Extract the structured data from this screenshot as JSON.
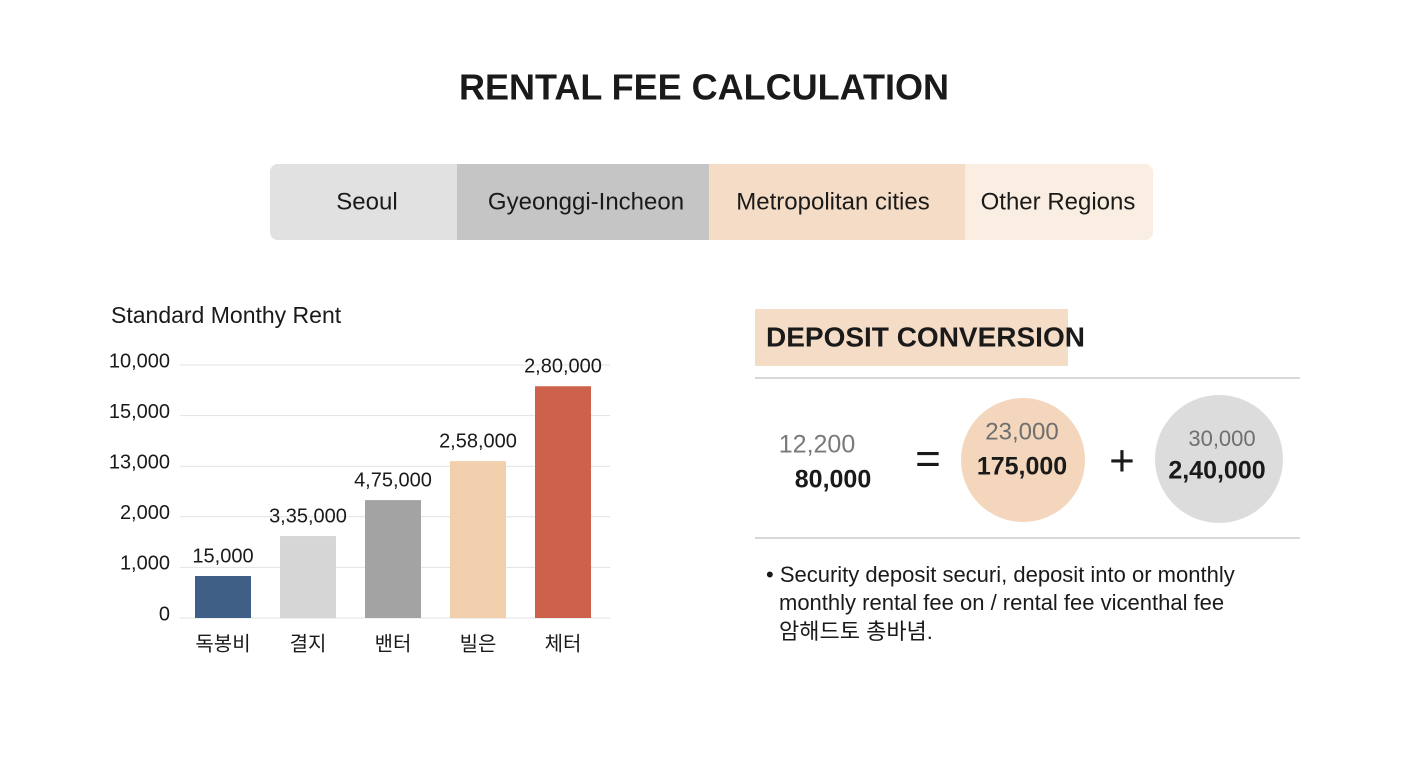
{
  "header": {
    "title": "RENTAL FEE CALCULATION"
  },
  "tabs": [
    "Seoul",
    "Gyeonggi-Incheon",
    "Metropolitan cities",
    "Other Regions"
  ],
  "chart_data": {
    "type": "bar",
    "title": "Standard Monthy Rent",
    "categories": [
      "독봉비",
      "결지",
      "밴터",
      "빌은",
      "체터"
    ],
    "values": [
      0.83,
      1.62,
      2.33,
      3.1,
      4.58
    ],
    "value_labels": [
      "15,000",
      "3,35,000",
      "4,75,000",
      "2,58,000",
      "2,80,000"
    ],
    "colors": [
      "#3f5f86",
      "#d6d6d6",
      "#a3a3a3",
      "#f1cfad",
      "#cd614b"
    ],
    "ylim": [
      0,
      5.2
    ],
    "yticks": [
      {
        "value": 0,
        "label": "0"
      },
      {
        "value": 1,
        "label": "1,000"
      },
      {
        "value": 2,
        "label": "2,000"
      },
      {
        "value": 3,
        "label": "13,000"
      },
      {
        "value": 4,
        "label": "15,000"
      },
      {
        "value": 5,
        "label": "10,000"
      }
    ],
    "grid": true
  },
  "deposit": {
    "title": "DEPOSIT CONVERSION",
    "left": {
      "top": "12,200",
      "bottom": "80,000"
    },
    "operators": [
      "=",
      "+"
    ],
    "middle": {
      "top": "23,000",
      "bottom": "175,000"
    },
    "right": {
      "top": "30,000",
      "bottom": "2,40,000"
    },
    "note": [
      "• Security deposit securi, deposit into or monthly",
      "monthly rental fee on / rental fee vicenthal fee",
      "암해드토 총바념."
    ]
  }
}
